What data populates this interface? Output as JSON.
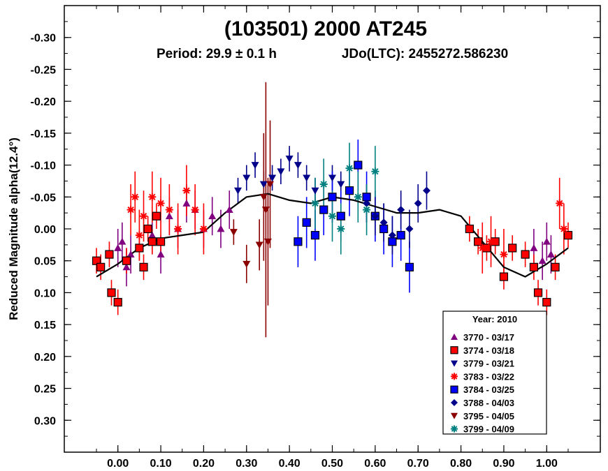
{
  "chart_data": {
    "type": "scatter",
    "title": "(103501) 2000 AT245",
    "subtitle_period": "Period: 29.9 ± 0.1 h",
    "subtitle_epoch": "JDo(LTC): 2455272.586230",
    "ylabel": "Reduced Magnitude alpha(12.4°)",
    "xlabel": "",
    "xlim": [
      -0.125,
      1.125
    ],
    "ylim": [
      -0.35,
      0.35
    ],
    "y_inverted": true,
    "x_ticks": [
      0.0,
      0.1,
      0.2,
      0.3,
      0.4,
      0.5,
      0.6,
      0.7,
      0.8,
      0.9,
      1.0
    ],
    "x_tick_labels": [
      "0.00",
      "0.10",
      "0.20",
      "0.30",
      "0.40",
      "0.50",
      "0.60",
      "0.70",
      "0.80",
      "0.90",
      "1.00"
    ],
    "y_ticks": [
      -0.3,
      -0.25,
      -0.2,
      -0.15,
      -0.1,
      -0.05,
      0.0,
      0.05,
      0.1,
      0.15,
      0.2,
      0.25,
      0.3
    ],
    "y_tick_labels": [
      "-0.30",
      "-0.25",
      "-0.20",
      "-0.15",
      "-0.10",
      "-0.05",
      "0.00",
      "0.05",
      "0.10",
      "0.15",
      "0.20",
      "0.25",
      "0.30"
    ],
    "legend": {
      "title": "Year: 2010",
      "placement": "bottom-right",
      "entries": [
        {
          "label": "3770 - 03/17",
          "marker": "triangle-up",
          "color": "#800080"
        },
        {
          "label": "3774 - 03/18",
          "marker": "square",
          "color": "#ff0000"
        },
        {
          "label": "3779 - 03/21",
          "marker": "triangle-down",
          "color": "#00008b"
        },
        {
          "label": "3783 - 03/22",
          "marker": "asterisk",
          "color": "#ff0000"
        },
        {
          "label": "3784 - 03/25",
          "marker": "square",
          "color": "#0000ff"
        },
        {
          "label": "3788 - 04/03",
          "marker": "diamond",
          "color": "#00008b"
        },
        {
          "label": "3795 - 04/05",
          "marker": "triangle-down",
          "color": "#8b0000"
        },
        {
          "label": "3799 - 04/09",
          "marker": "asterisk",
          "color": "#008080"
        }
      ]
    },
    "fit_curve": {
      "x": [
        -0.05,
        0.0,
        0.05,
        0.1,
        0.15,
        0.2,
        0.25,
        0.3,
        0.35,
        0.4,
        0.45,
        0.5,
        0.55,
        0.6,
        0.65,
        0.7,
        0.75,
        0.8,
        0.85,
        0.9,
        0.95,
        1.0,
        1.05
      ],
      "y": [
        0.075,
        0.055,
        0.03,
        0.015,
        0.01,
        0.005,
        -0.025,
        -0.05,
        -0.055,
        -0.045,
        -0.04,
        -0.05,
        -0.045,
        -0.035,
        -0.025,
        -0.025,
        -0.03,
        -0.02,
        0.02,
        0.06,
        0.075,
        0.055,
        0.03
      ]
    },
    "series": [
      {
        "name": "3770 - 03/17",
        "x": [
          0.0,
          0.01,
          0.02,
          0.03,
          0.08,
          0.1,
          0.12,
          0.14,
          0.16,
          0.18,
          0.2,
          0.22,
          0.24,
          0.26,
          0.97,
          0.99,
          1.0,
          1.01
        ],
        "y": [
          0.03,
          0.02,
          0.06,
          0.04,
          0.01,
          0.04,
          -0.02,
          0.0,
          -0.04,
          -0.03,
          0.0,
          -0.02,
          0.0,
          -0.03,
          0.03,
          0.05,
          0.02,
          0.04
        ],
        "err": [
          0.03,
          0.03,
          0.03,
          0.03,
          0.03,
          0.03,
          0.03,
          0.03,
          0.03,
          0.03,
          0.03,
          0.03,
          0.03,
          0.03,
          0.03,
          0.03,
          0.03,
          0.03
        ]
      },
      {
        "name": "3774 - 03/18",
        "x": [
          -0.05,
          -0.04,
          -0.02,
          -0.015,
          0.0,
          0.02,
          0.05,
          0.06,
          0.07,
          0.08,
          0.09,
          0.1,
          0.82,
          0.84,
          0.86,
          0.88,
          0.9,
          0.92,
          0.95,
          0.97,
          0.98,
          1.0,
          1.02,
          1.05
        ],
        "y": [
          0.05,
          0.06,
          0.04,
          0.1,
          0.115,
          0.05,
          0.03,
          0.06,
          0.0,
          0.02,
          -0.02,
          0.02,
          0.0,
          0.02,
          0.03,
          0.02,
          0.075,
          0.03,
          0.04,
          0.06,
          0.1,
          0.115,
          0.06,
          0.01
        ],
        "err": [
          0.02,
          0.02,
          0.02,
          0.02,
          0.02,
          0.02,
          0.02,
          0.02,
          0.02,
          0.02,
          0.02,
          0.02,
          0.02,
          0.02,
          0.02,
          0.02,
          0.02,
          0.02,
          0.02,
          0.02,
          0.02,
          0.02,
          0.02,
          0.02
        ]
      },
      {
        "name": "3779 - 03/21",
        "x": [
          0.28,
          0.3,
          0.32,
          0.34,
          0.36,
          0.38,
          0.4,
          0.42,
          0.44,
          0.46,
          0.5,
          0.52
        ],
        "y": [
          -0.06,
          -0.08,
          -0.1,
          -0.07,
          -0.08,
          -0.09,
          -0.11,
          -0.1,
          -0.08,
          -0.06,
          -0.08,
          -0.07
        ],
        "err": [
          0.02,
          0.02,
          0.02,
          0.02,
          0.02,
          0.02,
          0.02,
          0.02,
          0.02,
          0.02,
          0.02,
          0.02
        ]
      },
      {
        "name": "3783 - 03/22",
        "x": [
          0.03,
          0.04,
          0.05,
          0.06,
          0.08,
          0.1,
          0.12,
          0.14,
          0.16,
          0.18,
          0.2,
          0.85,
          0.87,
          0.9,
          1.03,
          1.04
        ],
        "y": [
          -0.03,
          -0.05,
          0.01,
          -0.02,
          -0.05,
          -0.04,
          -0.03,
          0.0,
          -0.06,
          -0.03,
          0.0,
          0.03,
          0.02,
          0.04,
          -0.04,
          0.0
        ],
        "err": [
          0.04,
          0.04,
          0.04,
          0.04,
          0.04,
          0.04,
          0.04,
          0.04,
          0.04,
          0.04,
          0.04,
          0.04,
          0.04,
          0.04,
          0.04,
          0.04
        ]
      },
      {
        "name": "3784 - 03/25",
        "x": [
          0.42,
          0.44,
          0.46,
          0.48,
          0.5,
          0.52,
          0.54,
          0.56,
          0.58,
          0.6,
          0.62,
          0.64,
          0.66,
          0.68
        ],
        "y": [
          0.02,
          -0.01,
          0.01,
          -0.03,
          -0.05,
          -0.02,
          -0.06,
          -0.1,
          -0.05,
          -0.02,
          0.0,
          0.02,
          0.01,
          0.06
        ],
        "err": [
          0.04,
          0.04,
          0.04,
          0.04,
          0.04,
          0.04,
          0.04,
          0.04,
          0.04,
          0.04,
          0.04,
          0.04,
          0.04,
          0.04
        ]
      },
      {
        "name": "3788 - 04/03",
        "x": [
          0.58,
          0.6,
          0.62,
          0.64,
          0.66,
          0.68,
          0.7,
          0.72
        ],
        "y": [
          -0.04,
          -0.02,
          -0.01,
          0.01,
          -0.03,
          0.0,
          -0.04,
          -0.06
        ],
        "err": [
          0.03,
          0.03,
          0.03,
          0.03,
          0.03,
          0.03,
          0.03,
          0.03
        ]
      },
      {
        "name": "3795 - 04/05",
        "x": [
          0.27,
          0.3,
          0.33,
          0.34,
          0.345,
          0.35,
          0.355
        ],
        "y": [
          0.005,
          0.055,
          0.025,
          -0.05,
          -0.03,
          0.02,
          -0.07
        ],
        "err": [
          0.02,
          0.03,
          0.04,
          0.1,
          0.2,
          0.1,
          0.1
        ]
      },
      {
        "name": "3799 - 04/09",
        "x": [
          0.46,
          0.48,
          0.5,
          0.52,
          0.54,
          0.56,
          0.58,
          0.6
        ],
        "y": [
          -0.04,
          -0.07,
          -0.02,
          0.0,
          -0.095,
          -0.05,
          -0.03,
          -0.09
        ],
        "err": [
          0.04,
          0.04,
          0.04,
          0.04,
          0.04,
          0.04,
          0.04,
          0.04
        ]
      }
    ]
  }
}
